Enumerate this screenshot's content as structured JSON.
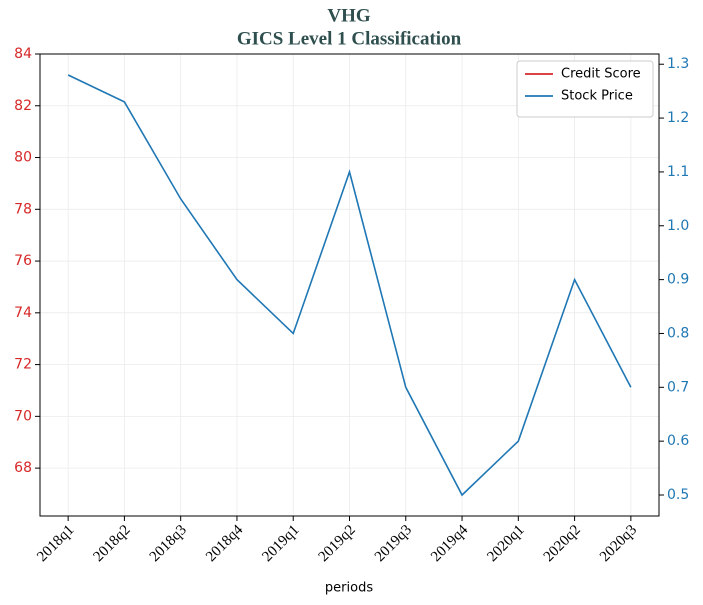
{
  "chart_data": {
    "type": "line",
    "title": "VHG",
    "subtitle": "GICS Level 1 Classification",
    "xlabel": "periods",
    "categories": [
      "2018q1",
      "2018q2",
      "2018q3",
      "2018q4",
      "2019q1",
      "2019q2",
      "2019q3",
      "2019q4",
      "2020q1",
      "2020q2",
      "2020q3"
    ],
    "series": [
      {
        "name": "Credit Score",
        "color": "#d62728",
        "values": [
          null,
          null,
          null,
          null,
          null,
          null,
          null,
          null,
          null,
          null,
          null
        ]
      },
      {
        "name": "Stock Price",
        "color": "#1f77b4",
        "axis": "y2",
        "values": [
          1.28,
          1.23,
          1.05,
          0.9,
          0.8,
          1.1,
          0.7,
          0.5,
          0.6,
          0.9,
          0.7
        ]
      }
    ],
    "ylim": [
      66.15,
      84
    ],
    "yticks": [
      68,
      70,
      72,
      74,
      76,
      78,
      80,
      82,
      84
    ],
    "y2lim": [
      0.461,
      1.319
    ],
    "y2ticks": [
      0.5,
      0.6,
      0.7,
      0.8,
      0.9,
      {
        "value": 1,
        "label": "1.0"
      },
      1.1,
      1.2,
      1.3
    ],
    "ycolor": "#d62728",
    "y2color": "#1f77b4",
    "grid": true,
    "legend": "upper right"
  }
}
